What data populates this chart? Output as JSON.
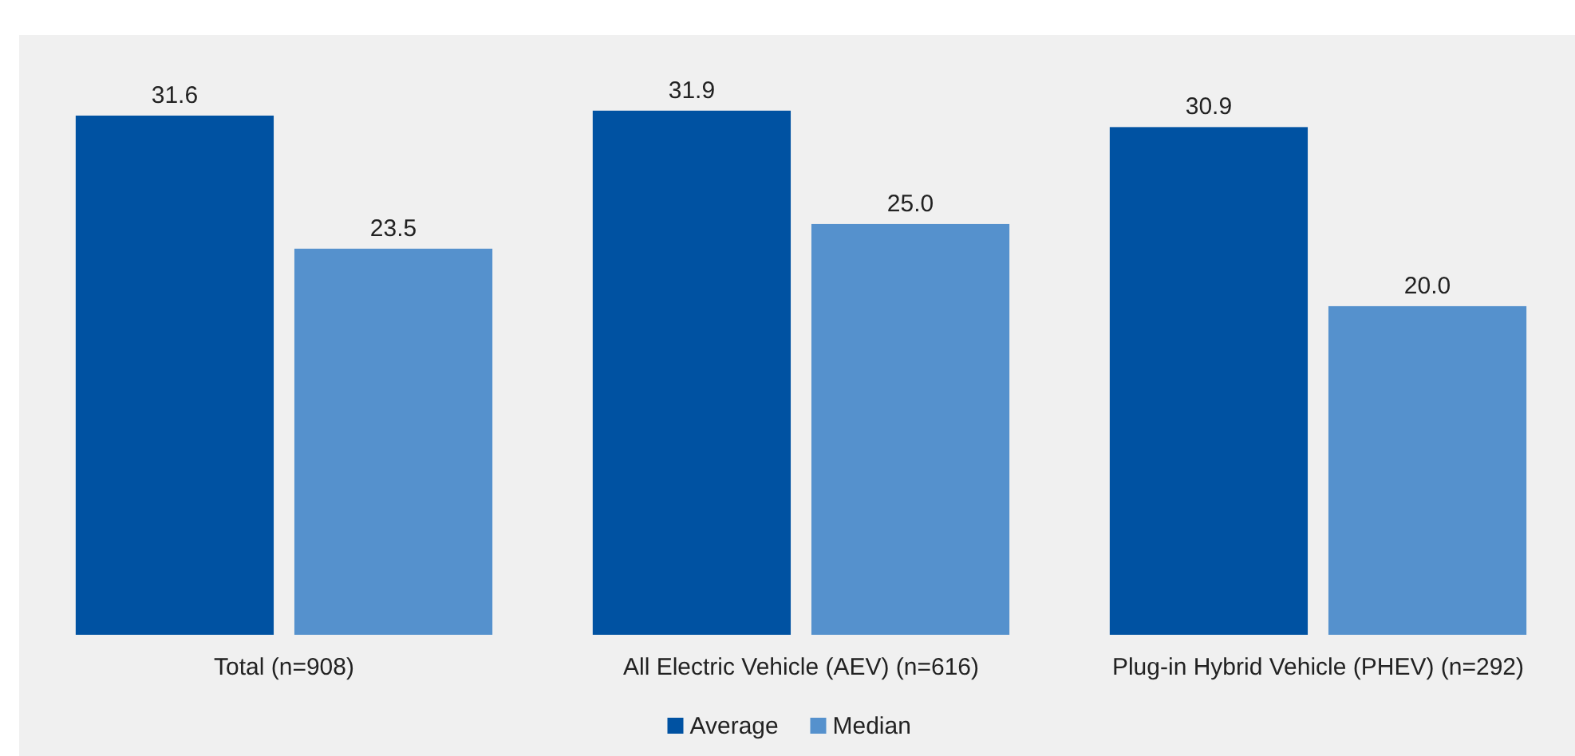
{
  "chart_data": {
    "type": "bar",
    "categories": [
      "Total (n=908)",
      "All Electric Vehicle (AEV) (n=616)",
      "Plug-in Hybrid Vehicle (PHEV) (n=292)"
    ],
    "series": [
      {
        "name": "Average",
        "color": "#0052a2",
        "values": [
          31.6,
          31.9,
          30.9
        ],
        "value_labels": [
          "31.6",
          "31.9",
          "30.9"
        ]
      },
      {
        "name": "Median",
        "color": "#5591cd",
        "values": [
          23.5,
          25.0,
          20.0
        ],
        "value_labels": [
          "23.5",
          "25.0",
          "20.0"
        ]
      }
    ],
    "ylim": [
      0,
      36.5
    ],
    "tick_labels": "x",
    "legend": "bottom",
    "grid": false
  }
}
